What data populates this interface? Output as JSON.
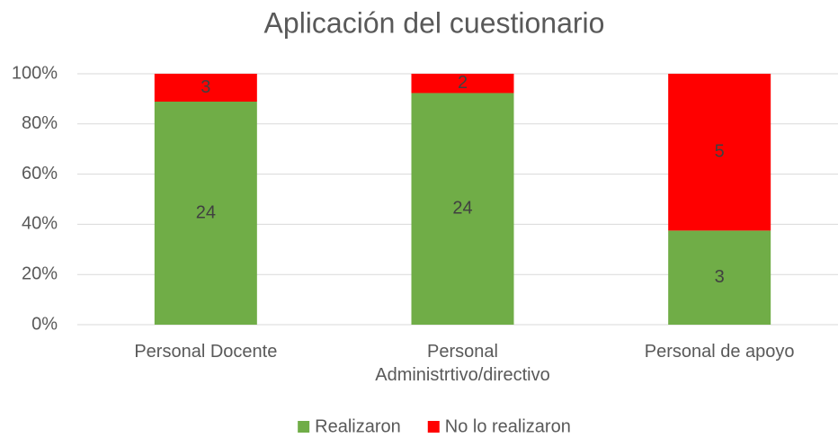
{
  "chart_data": {
    "type": "bar",
    "stacked": "percent",
    "title": "Aplicación del cuestionario",
    "categories": [
      "Personal Docente",
      "Personal Administrtivo/directivo",
      "Personal de apoyo"
    ],
    "series": [
      {
        "name": "Realizaron",
        "color": "#70ad47",
        "values": [
          24,
          24,
          3
        ]
      },
      {
        "name": "No lo realizaron",
        "color": "#ff0000",
        "values": [
          3,
          2,
          5
        ]
      }
    ],
    "ylim": [
      0,
      100
    ],
    "yticks": [
      {
        "value": 0,
        "label": "0%"
      },
      {
        "value": 20,
        "label": "20%"
      },
      {
        "value": 40,
        "label": "40%"
      },
      {
        "value": 60,
        "label": "60%"
      },
      {
        "value": 80,
        "label": "80%"
      },
      {
        "value": 100,
        "label": "100%"
      }
    ],
    "grid": true,
    "legend": "bottom"
  }
}
